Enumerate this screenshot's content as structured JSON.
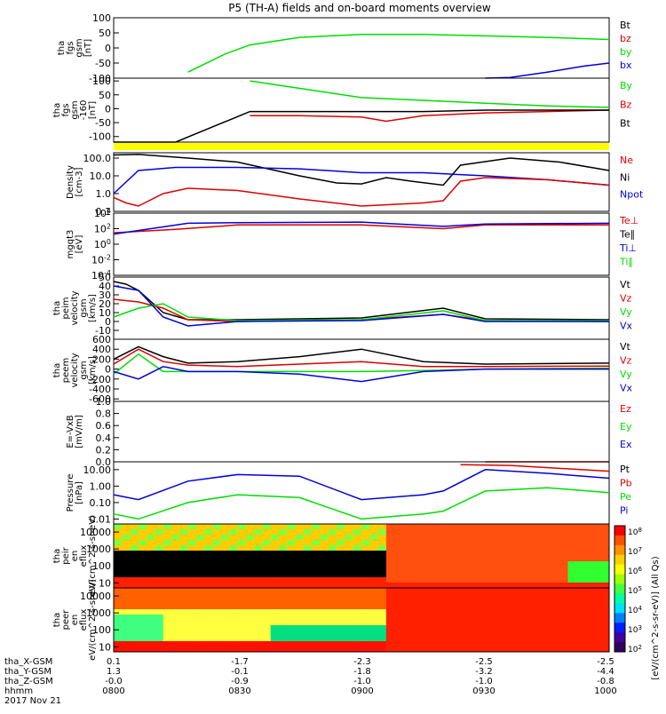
{
  "title": "P5 (TH-A) fields and on-board moments overview",
  "colors": {
    "black": "#000000",
    "red": "#dd0000",
    "green": "#00dd00",
    "blue": "#0000dd",
    "yellow": "#ffff00"
  },
  "chart_data": [
    {
      "type": "line",
      "panel": "fgs-gsm",
      "ylabel": "tha fgs gsm [nT]",
      "ylim": [
        -100,
        100
      ],
      "yticks": [
        "100",
        "50",
        "0",
        "-50",
        "-100"
      ],
      "legend": [
        {
          "name": "Bt",
          "color": "black"
        },
        {
          "name": "bz",
          "color": "red"
        },
        {
          "name": "by",
          "color": "green"
        },
        {
          "name": "bx",
          "color": "blue"
        }
      ],
      "series": [
        {
          "name": "by",
          "color": "green",
          "x": [
            8.3,
            8.45,
            8.55,
            8.75,
            9.0,
            9.25,
            9.5,
            9.75,
            10.0
          ],
          "y": [
            -80,
            -20,
            10,
            35,
            45,
            45,
            40,
            35,
            28
          ]
        },
        {
          "name": "bx",
          "color": "blue",
          "x": [
            9.5,
            9.6,
            9.75,
            9.9,
            10.0
          ],
          "y": [
            -100,
            -98,
            -80,
            -60,
            -50
          ]
        }
      ]
    },
    {
      "type": "line",
      "panel": "fgs-gse-160",
      "ylabel": "tha fgs gsm -160 [nT]",
      "ylim": [
        -120,
        110
      ],
      "yticks": [
        "100",
        "50",
        "0",
        "-50",
        "-100"
      ],
      "legend": [
        {
          "name": "By",
          "color": "green"
        },
        {
          "name": "Bz",
          "color": "red"
        },
        {
          "name": "Bt",
          "color": "black"
        }
      ],
      "series": [
        {
          "name": "By",
          "color": "green",
          "x": [
            8.55,
            8.7,
            9.0,
            9.25,
            9.5,
            9.75,
            10.0
          ],
          "y": [
            100,
            80,
            40,
            30,
            20,
            10,
            5
          ]
        },
        {
          "name": "Bz",
          "color": "red",
          "x": [
            8.55,
            8.75,
            9.0,
            9.1,
            9.25,
            9.5,
            9.75,
            10.0
          ],
          "y": [
            -25,
            -25,
            -30,
            -45,
            -25,
            -15,
            -10,
            -5
          ]
        },
        {
          "name": "Bt",
          "color": "black",
          "x": [
            8.0,
            8.25,
            8.55,
            8.75,
            9.0,
            9.25,
            9.5,
            10.0
          ],
          "y": [
            -120,
            -120,
            -10,
            -10,
            -10,
            -10,
            -5,
            -5
          ]
        }
      ]
    },
    {
      "type": "line",
      "panel": "density",
      "ylabel": "Density [cm-3]",
      "scale": "log",
      "ylim": [
        0.1,
        200
      ],
      "yticks": [
        "100.0",
        "10.0",
        "1.0",
        "0.1"
      ],
      "legend": [
        {
          "name": "Ne",
          "color": "red"
        },
        {
          "name": "Ni",
          "color": "black"
        },
        {
          "name": "Npot",
          "color": "blue"
        }
      ],
      "series": [
        {
          "name": "Ni",
          "color": "black",
          "x": [
            8.0,
            8.1,
            8.3,
            8.5,
            8.75,
            8.9,
            9.0,
            9.1,
            9.2,
            9.33,
            9.4,
            9.6,
            9.8,
            10.0
          ],
          "y": [
            150,
            160,
            100,
            60,
            10,
            4,
            3.5,
            8,
            5,
            3,
            40,
            100,
            60,
            20
          ]
        },
        {
          "name": "Npot",
          "color": "blue",
          "x": [
            8.0,
            8.1,
            8.25,
            8.5,
            8.75,
            9.0,
            9.25,
            9.5,
            9.75,
            10.0
          ],
          "y": [
            1,
            20,
            30,
            30,
            25,
            15,
            15,
            10,
            6,
            3
          ]
        },
        {
          "name": "Ne",
          "color": "red",
          "x": [
            8.0,
            8.05,
            8.1,
            8.2,
            8.3,
            8.5,
            8.75,
            9.0,
            9.25,
            9.33,
            9.4,
            9.5,
            9.75,
            10.0
          ],
          "y": [
            0.6,
            0.3,
            0.2,
            1.0,
            2.0,
            1.5,
            0.5,
            0.2,
            0.3,
            0.4,
            5,
            8,
            6,
            3
          ]
        }
      ]
    },
    {
      "type": "line",
      "panel": "mgqt3",
      "ylabel": "mgqt3 [eV]",
      "scale": "log",
      "ylim": [
        0.0001,
        10000.0
      ],
      "yticks": [
        "10^4",
        "10^2",
        "10^0",
        "10^-2",
        "10^-4"
      ],
      "legend": [
        {
          "name": "Te⊥",
          "color": "red"
        },
        {
          "name": "Te∥",
          "color": "black"
        },
        {
          "name": "Ti⊥",
          "color": "blue"
        },
        {
          "name": "Ti∥",
          "color": "green"
        }
      ],
      "series": [
        {
          "name": "Te⊥",
          "color": "red",
          "x": [
            8.0,
            8.25,
            8.5,
            9.0,
            9.33,
            9.5,
            10.0
          ],
          "y": [
            30,
            80,
            300,
            300,
            100,
            300,
            300
          ]
        },
        {
          "name": "Ti⊥",
          "color": "blue",
          "x": [
            8.0,
            8.15,
            8.3,
            8.5,
            9.0,
            9.33,
            9.5,
            10.0
          ],
          "y": [
            20,
            100,
            500,
            600,
            700,
            200,
            400,
            500
          ]
        }
      ]
    },
    {
      "type": "line",
      "panel": "peim-velocity",
      "ylabel": "tha peim velocity gsm [km/s]",
      "ylim": [
        -20,
        50
      ],
      "yticks": [
        "50",
        "40",
        "30",
        "20",
        "10",
        "0",
        "-10"
      ],
      "legend": [
        {
          "name": "Vt",
          "color": "black"
        },
        {
          "name": "Vz",
          "color": "red"
        },
        {
          "name": "Vy",
          "color": "green"
        },
        {
          "name": "Vx",
          "color": "blue"
        }
      ],
      "series": [
        {
          "name": "Vt",
          "color": "black",
          "x": [
            8.0,
            8.05,
            8.1,
            8.2,
            8.3,
            8.5,
            9.0,
            9.33,
            9.5,
            10.0
          ],
          "y": [
            45,
            42,
            35,
            10,
            2,
            2,
            4,
            15,
            3,
            2
          ]
        },
        {
          "name": "Vz",
          "color": "red",
          "x": [
            8.0,
            8.1,
            8.2,
            8.3,
            8.5,
            9.0,
            9.33,
            9.5,
            10.0
          ],
          "y": [
            25,
            22,
            15,
            2,
            0,
            2,
            8,
            1,
            0
          ]
        },
        {
          "name": "Vy",
          "color": "green",
          "x": [
            8.0,
            8.1,
            8.2,
            8.3,
            8.5,
            9.0,
            9.33,
            9.5,
            10.0
          ],
          "y": [
            5,
            15,
            20,
            5,
            1,
            2,
            12,
            1,
            1
          ]
        },
        {
          "name": "Vx",
          "color": "blue",
          "x": [
            8.0,
            8.1,
            8.2,
            8.3,
            8.5,
            9.0,
            9.33,
            9.5,
            10.0
          ],
          "y": [
            40,
            35,
            5,
            -5,
            0,
            1,
            8,
            0,
            0
          ]
        }
      ]
    },
    {
      "type": "line",
      "panel": "peem-velocity",
      "ylabel": "tha peem velocity gsm [km/s]",
      "ylim": [
        -650,
        600
      ],
      "yticks": [
        "600",
        "400",
        "200",
        "0",
        "-200",
        "-400",
        "-600"
      ],
      "legend": [
        {
          "name": "Vt",
          "color": "black"
        },
        {
          "name": "Vz",
          "color": "red"
        },
        {
          "name": "Vy",
          "color": "green"
        },
        {
          "name": "Vx",
          "color": "blue"
        }
      ],
      "series": [
        {
          "name": "Vt",
          "color": "black",
          "x": [
            8.0,
            8.1,
            8.2,
            8.3,
            8.5,
            8.75,
            9.0,
            9.25,
            9.5,
            10.0
          ],
          "y": [
            200,
            450,
            250,
            120,
            150,
            250,
            400,
            150,
            100,
            120
          ]
        },
        {
          "name": "Vz",
          "color": "red",
          "x": [
            8.0,
            8.1,
            8.2,
            8.3,
            8.5,
            8.75,
            9.0,
            9.25,
            9.5,
            10.0
          ],
          "y": [
            100,
            400,
            150,
            80,
            50,
            100,
            150,
            50,
            50,
            60
          ]
        },
        {
          "name": "Vy",
          "color": "green",
          "x": [
            8.0,
            8.1,
            8.2,
            8.3,
            8.5,
            8.75,
            9.0,
            9.25,
            9.5,
            10.0
          ],
          "y": [
            -100,
            300,
            -50,
            -50,
            -50,
            -50,
            -50,
            -30,
            0,
            20
          ]
        },
        {
          "name": "Vx",
          "color": "blue",
          "x": [
            8.0,
            8.1,
            8.2,
            8.3,
            8.5,
            8.75,
            9.0,
            9.25,
            9.5,
            10.0
          ],
          "y": [
            -50,
            -200,
            50,
            -50,
            -50,
            -100,
            -250,
            -50,
            0,
            0
          ]
        }
      ]
    },
    {
      "type": "line",
      "panel": "efield",
      "ylabel": "E=-VxB [mV/m]",
      "ylim": [
        0,
        1
      ],
      "yticks": [
        "1.0",
        "0.8",
        "0.6",
        "0.4",
        "0.2",
        "0.0"
      ],
      "legend": [
        {
          "name": "Ez",
          "color": "red"
        },
        {
          "name": "Ey",
          "color": "green"
        },
        {
          "name": "Ex",
          "color": "blue"
        }
      ],
      "series": [
        {
          "name": "Ez",
          "color": "red",
          "x": [
            9.5,
            9.75,
            10.0
          ],
          "y": [
            0.0,
            0.0,
            0.0
          ]
        }
      ]
    },
    {
      "type": "line",
      "panel": "pressure",
      "ylabel": "Pressure [nPa]",
      "scale": "log",
      "ylim": [
        0.005,
        30
      ],
      "yticks": [
        "10.00",
        "1.00",
        "0.10",
        "0.01"
      ],
      "legend": [
        {
          "name": "Pt",
          "color": "black"
        },
        {
          "name": "Pb",
          "color": "red"
        },
        {
          "name": "Pe",
          "color": "green"
        },
        {
          "name": "Pi",
          "color": "blue"
        }
      ],
      "series": [
        {
          "name": "Pi",
          "color": "blue",
          "x": [
            8.0,
            8.1,
            8.3,
            8.5,
            8.75,
            9.0,
            9.25,
            9.33,
            9.5,
            9.75,
            10.0
          ],
          "y": [
            0.3,
            0.15,
            2,
            5,
            4,
            0.15,
            0.3,
            0.5,
            10,
            6,
            3
          ]
        },
        {
          "name": "Pe",
          "color": "green",
          "x": [
            8.0,
            8.1,
            8.3,
            8.5,
            8.75,
            9.0,
            9.25,
            9.33,
            9.5,
            9.75,
            10.0
          ],
          "y": [
            0.02,
            0.01,
            0.1,
            0.3,
            0.2,
            0.01,
            0.02,
            0.03,
            0.5,
            0.8,
            0.4
          ]
        },
        {
          "name": "Pb",
          "color": "red",
          "x": [
            9.4,
            9.6,
            9.8,
            10.0
          ],
          "y": [
            20,
            18,
            12,
            8
          ]
        }
      ]
    },
    {
      "type": "heatmap",
      "panel": "peir-en-eflux",
      "ylabel": "tha peir en eflux eV/(cm^2-s-sr-eV)",
      "scale": "log",
      "ylim": [
        5,
        30000
      ],
      "yticks": [
        "10000",
        "1000",
        "100",
        "10"
      ]
    },
    {
      "type": "heatmap",
      "panel": "peer-en-eflux",
      "ylabel": "tha peer en eflux eV/(cm^2-s-sr-eV)",
      "scale": "log",
      "ylim": [
        5,
        30000
      ],
      "yticks": [
        "10000",
        "1000",
        "100",
        "10"
      ]
    }
  ],
  "colorbar": {
    "label": "[eV/(cm^2-s-sr-eV)] (All Qs)",
    "ticks": [
      "10^8",
      "10^7",
      "10^6",
      "10^5",
      "10^4",
      "10^3",
      "10^2"
    ]
  },
  "xaxis": {
    "rows": [
      {
        "label": "tha_X-GSM",
        "values": [
          "0.1",
          "-1.7",
          "-2.3",
          "-2.5",
          "-2.5"
        ]
      },
      {
        "label": "tha_Y-GSM",
        "values": [
          "1.3",
          "-0.1",
          "-1.8",
          "-3.2",
          "-4.4"
        ]
      },
      {
        "label": "tha_Z-GSM",
        "values": [
          "-0.0",
          "-0.9",
          "-1.0",
          "-1.0",
          "-0.8"
        ]
      },
      {
        "label": "hhmm",
        "values": [
          "0800",
          "0830",
          "0900",
          "0930",
          "1000"
        ]
      }
    ],
    "date": "2017 Nov 21"
  }
}
